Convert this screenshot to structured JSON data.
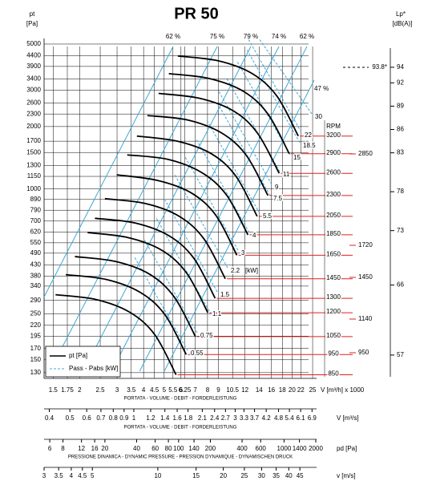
{
  "chart_data": {
    "type": "fan-curves",
    "title": "PR 50",
    "y_label": "pt",
    "y_unit": "[Pa]",
    "log_scale": true,
    "ylim": [
      122,
      5320
    ],
    "yticks": [
      5000,
      4400,
      3900,
      3400,
      3000,
      2600,
      2300,
      2000,
      1700,
      1500,
      1300,
      1150,
      1000,
      890,
      790,
      700,
      620,
      550,
      490,
      430,
      380,
      340,
      290,
      250,
      220,
      195,
      170,
      150,
      130
    ],
    "x_axes": [
      {
        "label": "V [m³/h] x 1000",
        "subtitle": "PORTATA - VOLUME - DEBIT - FORDERLEISTUNG",
        "xlim": [
          1.36,
          26.1
        ],
        "ticks": [
          1.5,
          1.75,
          2,
          2.5,
          3,
          3.5,
          4,
          4.5,
          5,
          5.5,
          6,
          6.25,
          7,
          8,
          9,
          10.5,
          12,
          14,
          16,
          18,
          20,
          22,
          25
        ]
      },
      {
        "label": "V [m³/s]",
        "subtitle": "PORTATA - VOLUME - DEBIT - FORDERLEISTUNG",
        "xlim": [
          0.378,
          7.25
        ],
        "ticks": [
          0.4,
          0.5,
          0.6,
          0.7,
          0.8,
          0.9,
          1,
          1.2,
          1.4,
          1.6,
          1.8,
          2.1,
          2.4,
          2.7,
          3,
          3.3,
          3.7,
          4.2,
          4.8,
          5.4,
          6.1,
          6.9
        ]
      },
      {
        "label": "pd [Pa]",
        "subtitle": "PRESSIONE DINAMICA - DYNAMIC PRESSURE - PRESSION DYNAMIQUE - DYNAMISCHEN DRUCK",
        "xlim": [
          5.3,
          2035
        ],
        "ticks": [
          6,
          8,
          12,
          16,
          20,
          40,
          60,
          80,
          100,
          140,
          200,
          400,
          600,
          1000,
          1400,
          2000
        ]
      },
      {
        "label": "v [m/s]",
        "xlim": [
          3,
          53.7
        ],
        "ticks": [
          3,
          3.5,
          4,
          4.5,
          5,
          10,
          15,
          20,
          25,
          30,
          35,
          40,
          45
        ]
      }
    ],
    "rpm_label": "RPM",
    "series": [
      {
        "name": "3200",
        "color": "#000000",
        "x": [
          5.8,
          9,
          13,
          17,
          21.4
        ],
        "values": [
          4380,
          4150,
          3600,
          2800,
          1800
        ]
      },
      {
        "name": "2900",
        "color": "#000000",
        "x": [
          5.26,
          8.16,
          11.8,
          15.4,
          19.4
        ],
        "values": [
          3600,
          3410,
          2960,
          2300,
          1480
        ]
      },
      {
        "name": "2600",
        "color": "#000000",
        "x": [
          4.71,
          7.31,
          10.6,
          13.8,
          17.4
        ],
        "values": [
          2890,
          2740,
          2380,
          1850,
          1190
        ]
      },
      {
        "name": "2300",
        "color": "#000000",
        "x": [
          4.17,
          6.47,
          9.34,
          12.2,
          15.4
        ],
        "values": [
          2260,
          2150,
          1860,
          1450,
          930
        ]
      },
      {
        "name": "2050",
        "color": "#000000",
        "x": [
          3.72,
          5.77,
          8.33,
          10.9,
          13.7
        ],
        "values": [
          1800,
          1700,
          1480,
          1150,
          738
        ]
      },
      {
        "name": "1850",
        "color": "#000000",
        "x": [
          3.35,
          5.2,
          7.51,
          9.83,
          12.4
        ],
        "values": [
          1460,
          1390,
          1200,
          935,
          601
        ]
      },
      {
        "name": "1650",
        "color": "#000000",
        "x": [
          2.99,
          4.64,
          6.7,
          8.77,
          11.0
        ],
        "values": [
          1170,
          1100,
          958,
          745,
          479
        ]
      },
      {
        "name": "1450",
        "color": "#000000",
        "x": [
          2.63,
          4.08,
          5.89,
          7.7,
          9.7
        ],
        "values": [
          898,
          851,
          738,
          574,
          369
        ]
      },
      {
        "name": "1300",
        "color": "#000000",
        "x": [
          2.36,
          3.66,
          5.28,
          6.91,
          8.69
        ],
        "values": [
          722,
          685,
          594,
          462,
          297
        ]
      },
      {
        "name": "1200",
        "color": "#000000",
        "x": [
          2.18,
          3.38,
          4.88,
          6.38,
          8.03
        ],
        "values": [
          616,
          583,
          506,
          393,
          253
        ]
      },
      {
        "name": "1050",
        "color": "#000000",
        "x": [
          1.9,
          2.95,
          4.27,
          5.58,
          7.02
        ],
        "values": [
          472,
          447,
          388,
          301,
          194
        ]
      },
      {
        "name": "950",
        "color": "#000000",
        "x": [
          1.72,
          2.67,
          3.86,
          5.05,
          6.35
        ],
        "values": [
          386,
          366,
          317,
          247,
          159
        ]
      },
      {
        "name": "850",
        "color": "#000000",
        "x": [
          1.54,
          2.39,
          3.45,
          4.52,
          5.69
        ],
        "values": [
          309,
          293,
          254,
          198,
          127
        ]
      }
    ],
    "power_labels": [
      30,
      22,
      18.5,
      15,
      11,
      9,
      7.5,
      5.5,
      4,
      3,
      2.2,
      1.5,
      1.1,
      0.75,
      0.55
    ],
    "power_unit": "[kW]",
    "efficiency_labels": [
      "62 %",
      "75 %",
      "79 %",
      "74 %",
      "62 %",
      "47 %"
    ],
    "y2_label": "Lp*",
    "y2_unit": "[dB(A)]",
    "y2lim": [
      54,
      97.7
    ],
    "y2ticks": [
      94,
      92,
      89,
      86,
      83,
      78,
      73,
      66,
      57
    ],
    "y2_annotation": "93.8*",
    "right_values": [
      2850,
      1720,
      1450,
      1140,
      950
    ],
    "legend": [
      "pt [Pa]",
      "Pass - Pabs [kW]"
    ]
  }
}
